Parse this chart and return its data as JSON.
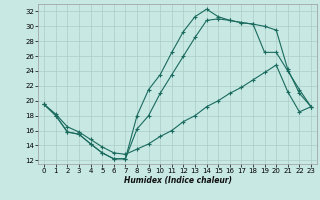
{
  "xlabel": "Humidex (Indice chaleur)",
  "bg_color": "#c8e8e4",
  "grid_color": "#aaccc6",
  "line_color": "#1a6b5e",
  "xlim": [
    -0.5,
    23.5
  ],
  "ylim": [
    11.5,
    33.0
  ],
  "xticks": [
    0,
    1,
    2,
    3,
    4,
    5,
    6,
    7,
    8,
    9,
    10,
    11,
    12,
    13,
    14,
    15,
    16,
    17,
    18,
    19,
    20,
    21,
    22,
    23
  ],
  "yticks": [
    12,
    14,
    16,
    18,
    20,
    22,
    24,
    26,
    28,
    30,
    32
  ],
  "line1_x": [
    0,
    1,
    2,
    3,
    4,
    5,
    6,
    7,
    8,
    9,
    10,
    11,
    12,
    13,
    14,
    15,
    16,
    17,
    18,
    19,
    20,
    21,
    22,
    23
  ],
  "line1_y": [
    19.5,
    18.0,
    15.8,
    15.5,
    14.2,
    13.0,
    12.2,
    12.2,
    18.0,
    21.5,
    23.5,
    26.5,
    29.3,
    31.3,
    32.3,
    31.3,
    30.8,
    30.5,
    30.3,
    30.0,
    29.5,
    24.2,
    21.0,
    19.2
  ],
  "line2_x": [
    0,
    1,
    2,
    3,
    4,
    5,
    6,
    7,
    8,
    9,
    10,
    11,
    12,
    13,
    14,
    15,
    16,
    17,
    18,
    19,
    20,
    21,
    22,
    23
  ],
  "line2_y": [
    19.5,
    18.0,
    15.8,
    15.5,
    14.2,
    13.0,
    12.2,
    12.2,
    16.2,
    18.0,
    21.0,
    23.5,
    26.0,
    28.5,
    30.8,
    31.0,
    30.8,
    30.5,
    30.3,
    26.5,
    26.5,
    24.0,
    21.5,
    19.2
  ],
  "line3_x": [
    0,
    1,
    2,
    3,
    4,
    5,
    6,
    7,
    8,
    9,
    10,
    11,
    12,
    13,
    14,
    15,
    16,
    17,
    18,
    19,
    20,
    21,
    22,
    23
  ],
  "line3_y": [
    19.5,
    18.2,
    16.5,
    15.8,
    14.8,
    13.8,
    13.0,
    12.8,
    13.5,
    14.2,
    15.2,
    16.0,
    17.2,
    18.0,
    19.2,
    20.0,
    21.0,
    21.8,
    22.8,
    23.8,
    24.8,
    21.2,
    18.5,
    19.2
  ]
}
